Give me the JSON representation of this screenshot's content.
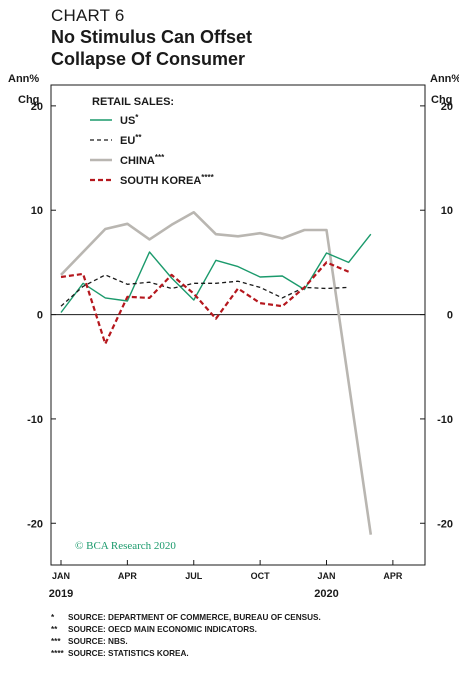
{
  "header": {
    "chart_number": "CHART 6",
    "title_lines": [
      "No Stimulus Can Offset",
      "Collapse Of Consumer"
    ]
  },
  "chart_data": {
    "type": "line",
    "title": "No Stimulus Can Offset Collapse Of Consumer",
    "ylabel_left": [
      "Ann%",
      "Chg"
    ],
    "ylabel_right": [
      "Ann%",
      "Chg"
    ],
    "ylim": [
      -24,
      22
    ],
    "yticks": [
      20,
      10,
      0,
      -10,
      -20
    ],
    "xlim": [
      "2019-01",
      "2020-05"
    ],
    "month_ticks": [
      {
        "x": "2019-01",
        "label": "JAN"
      },
      {
        "x": "2019-04",
        "label": "APR"
      },
      {
        "x": "2019-07",
        "label": "JUL"
      },
      {
        "x": "2019-10",
        "label": "OCT"
      },
      {
        "x": "2020-01",
        "label": "JAN"
      },
      {
        "x": "2020-04",
        "label": "APR"
      }
    ],
    "year_labels": [
      {
        "x": "2019-01",
        "label": "2019"
      },
      {
        "x": "2020-01",
        "label": "2020"
      }
    ],
    "legend_title": "RETAIL SALES:",
    "legend_position": "top-left",
    "series": [
      {
        "name": "US",
        "marker": "*",
        "color": "#1b9a6c",
        "style": "solid",
        "x": [
          "2019-01",
          "2019-02",
          "2019-03",
          "2019-04",
          "2019-05",
          "2019-06",
          "2019-07",
          "2019-08",
          "2019-09",
          "2019-10",
          "2019-11",
          "2019-12",
          "2020-01",
          "2020-02",
          "2020-03"
        ],
        "values": [
          0.2,
          3.0,
          1.6,
          1.3,
          6.0,
          3.5,
          1.4,
          5.2,
          4.6,
          3.6,
          3.7,
          2.4,
          5.9,
          5.0,
          7.7
        ]
      },
      {
        "name": "EU",
        "marker": "**",
        "color": "#1a1a1a",
        "style": "dashed",
        "x": [
          "2019-01",
          "2019-02",
          "2019-03",
          "2019-04",
          "2019-05",
          "2019-06",
          "2019-07",
          "2019-08",
          "2019-09",
          "2019-10",
          "2019-11",
          "2019-12",
          "2020-01",
          "2020-02"
        ],
        "values": [
          0.8,
          2.7,
          3.8,
          2.9,
          3.1,
          2.5,
          3.0,
          3.0,
          3.2,
          2.6,
          1.6,
          2.6,
          2.5,
          2.6
        ]
      },
      {
        "name": "CHINA",
        "marker": "***",
        "color": "#b9b6b1",
        "style": "solid",
        "x": [
          "2019-01",
          "2019-03",
          "2019-04",
          "2019-05",
          "2019-06",
          "2019-07",
          "2019-08",
          "2019-09",
          "2019-10",
          "2019-11",
          "2019-12",
          "2020-01",
          "2020-03"
        ],
        "values": [
          3.8,
          8.2,
          8.7,
          7.2,
          8.6,
          9.8,
          7.7,
          7.5,
          7.8,
          7.3,
          8.1,
          8.1,
          -21.1
        ]
      },
      {
        "name": "SOUTH KOREA",
        "marker": "****",
        "color": "#b5171d",
        "style": "dashed",
        "x": [
          "2019-01",
          "2019-02",
          "2019-03",
          "2019-04",
          "2019-05",
          "2019-06",
          "2019-07",
          "2019-08",
          "2019-09",
          "2019-10",
          "2019-11",
          "2019-12",
          "2020-01",
          "2020-02"
        ],
        "values": [
          3.6,
          3.9,
          -2.8,
          1.7,
          1.6,
          3.8,
          2.0,
          -0.4,
          2.5,
          1.1,
          0.8,
          2.6,
          5.0,
          4.1
        ]
      }
    ]
  },
  "credit": "© BCA Research 2020",
  "footnotes": [
    {
      "mark": "*",
      "text": "SOURCE: DEPARTMENT OF COMMERCE, BUREAU OF CENSUS."
    },
    {
      "mark": "**",
      "text": "SOURCE: OECD MAIN ECONOMIC INDICATORS."
    },
    {
      "mark": "***",
      "text": "SOURCE: NBS."
    },
    {
      "mark": "****",
      "text": "SOURCE: STATISTICS KOREA."
    }
  ]
}
